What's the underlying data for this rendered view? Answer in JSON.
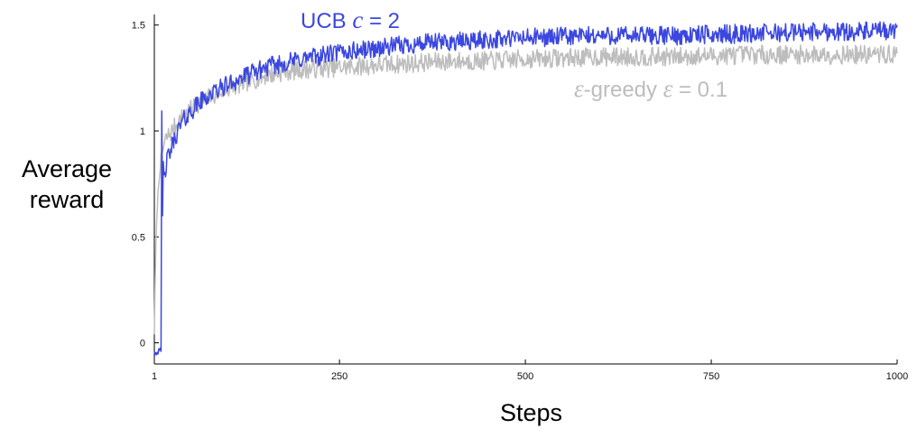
{
  "chart_data": {
    "type": "line",
    "xlabel": "Steps",
    "ylabel_lines": [
      "Average",
      "reward"
    ],
    "xlim": [
      1,
      1000
    ],
    "ylim": [
      -0.1,
      1.55
    ],
    "x_ticks": [
      {
        "value": 1,
        "label": "1"
      },
      {
        "value": 250,
        "label": "250"
      },
      {
        "value": 500,
        "label": "500"
      },
      {
        "value": 750,
        "label": "750"
      },
      {
        "value": 1000,
        "label": "1000"
      }
    ],
    "y_ticks": [
      {
        "value": 0,
        "label": "0"
      },
      {
        "value": 0.5,
        "label": "0.5"
      },
      {
        "value": 1,
        "label": "1"
      },
      {
        "value": 1.5,
        "label": "1.5"
      }
    ],
    "grid": false,
    "series": [
      {
        "name": "ε-greedy ε = 0.1",
        "label_parts": {
          "symbol": "ε",
          "text": "-greedy",
          "symbol2": "ε",
          "text2": " = 0.1"
        },
        "color": "#bdbdbd",
        "x": [
          1,
          2,
          3,
          5,
          8,
          10,
          12,
          15,
          20,
          25,
          30,
          40,
          50,
          60,
          75,
          100,
          125,
          150,
          175,
          200,
          250,
          300,
          350,
          400,
          450,
          500,
          600,
          700,
          800,
          900,
          1000
        ],
        "y": [
          0.05,
          0.25,
          0.45,
          0.65,
          0.8,
          0.87,
          0.9,
          0.95,
          0.98,
          1.0,
          1.03,
          1.07,
          1.1,
          1.13,
          1.16,
          1.2,
          1.23,
          1.26,
          1.28,
          1.29,
          1.3,
          1.31,
          1.32,
          1.33,
          1.33,
          1.34,
          1.35,
          1.35,
          1.36,
          1.36,
          1.36
        ]
      },
      {
        "name": "UCB c = 2",
        "label_parts": {
          "text": "UCB ",
          "symbol": "c",
          "text2": " = 2"
        },
        "color": "#3b47e0",
        "x": [
          1,
          3,
          5,
          8,
          10,
          11,
          12,
          13,
          14,
          15,
          17,
          20,
          25,
          30,
          40,
          50,
          60,
          75,
          100,
          125,
          150,
          175,
          200,
          250,
          300,
          350,
          400,
          450,
          500,
          600,
          700,
          800,
          900,
          1000
        ],
        "y": [
          -0.03,
          -0.05,
          -0.04,
          -0.02,
          -0.06,
          1.08,
          0.6,
          0.85,
          0.78,
          0.8,
          0.84,
          0.88,
          0.93,
          0.98,
          1.05,
          1.09,
          1.13,
          1.17,
          1.22,
          1.26,
          1.3,
          1.32,
          1.34,
          1.37,
          1.39,
          1.41,
          1.42,
          1.43,
          1.44,
          1.45,
          1.45,
          1.46,
          1.47,
          1.47
        ]
      }
    ]
  }
}
